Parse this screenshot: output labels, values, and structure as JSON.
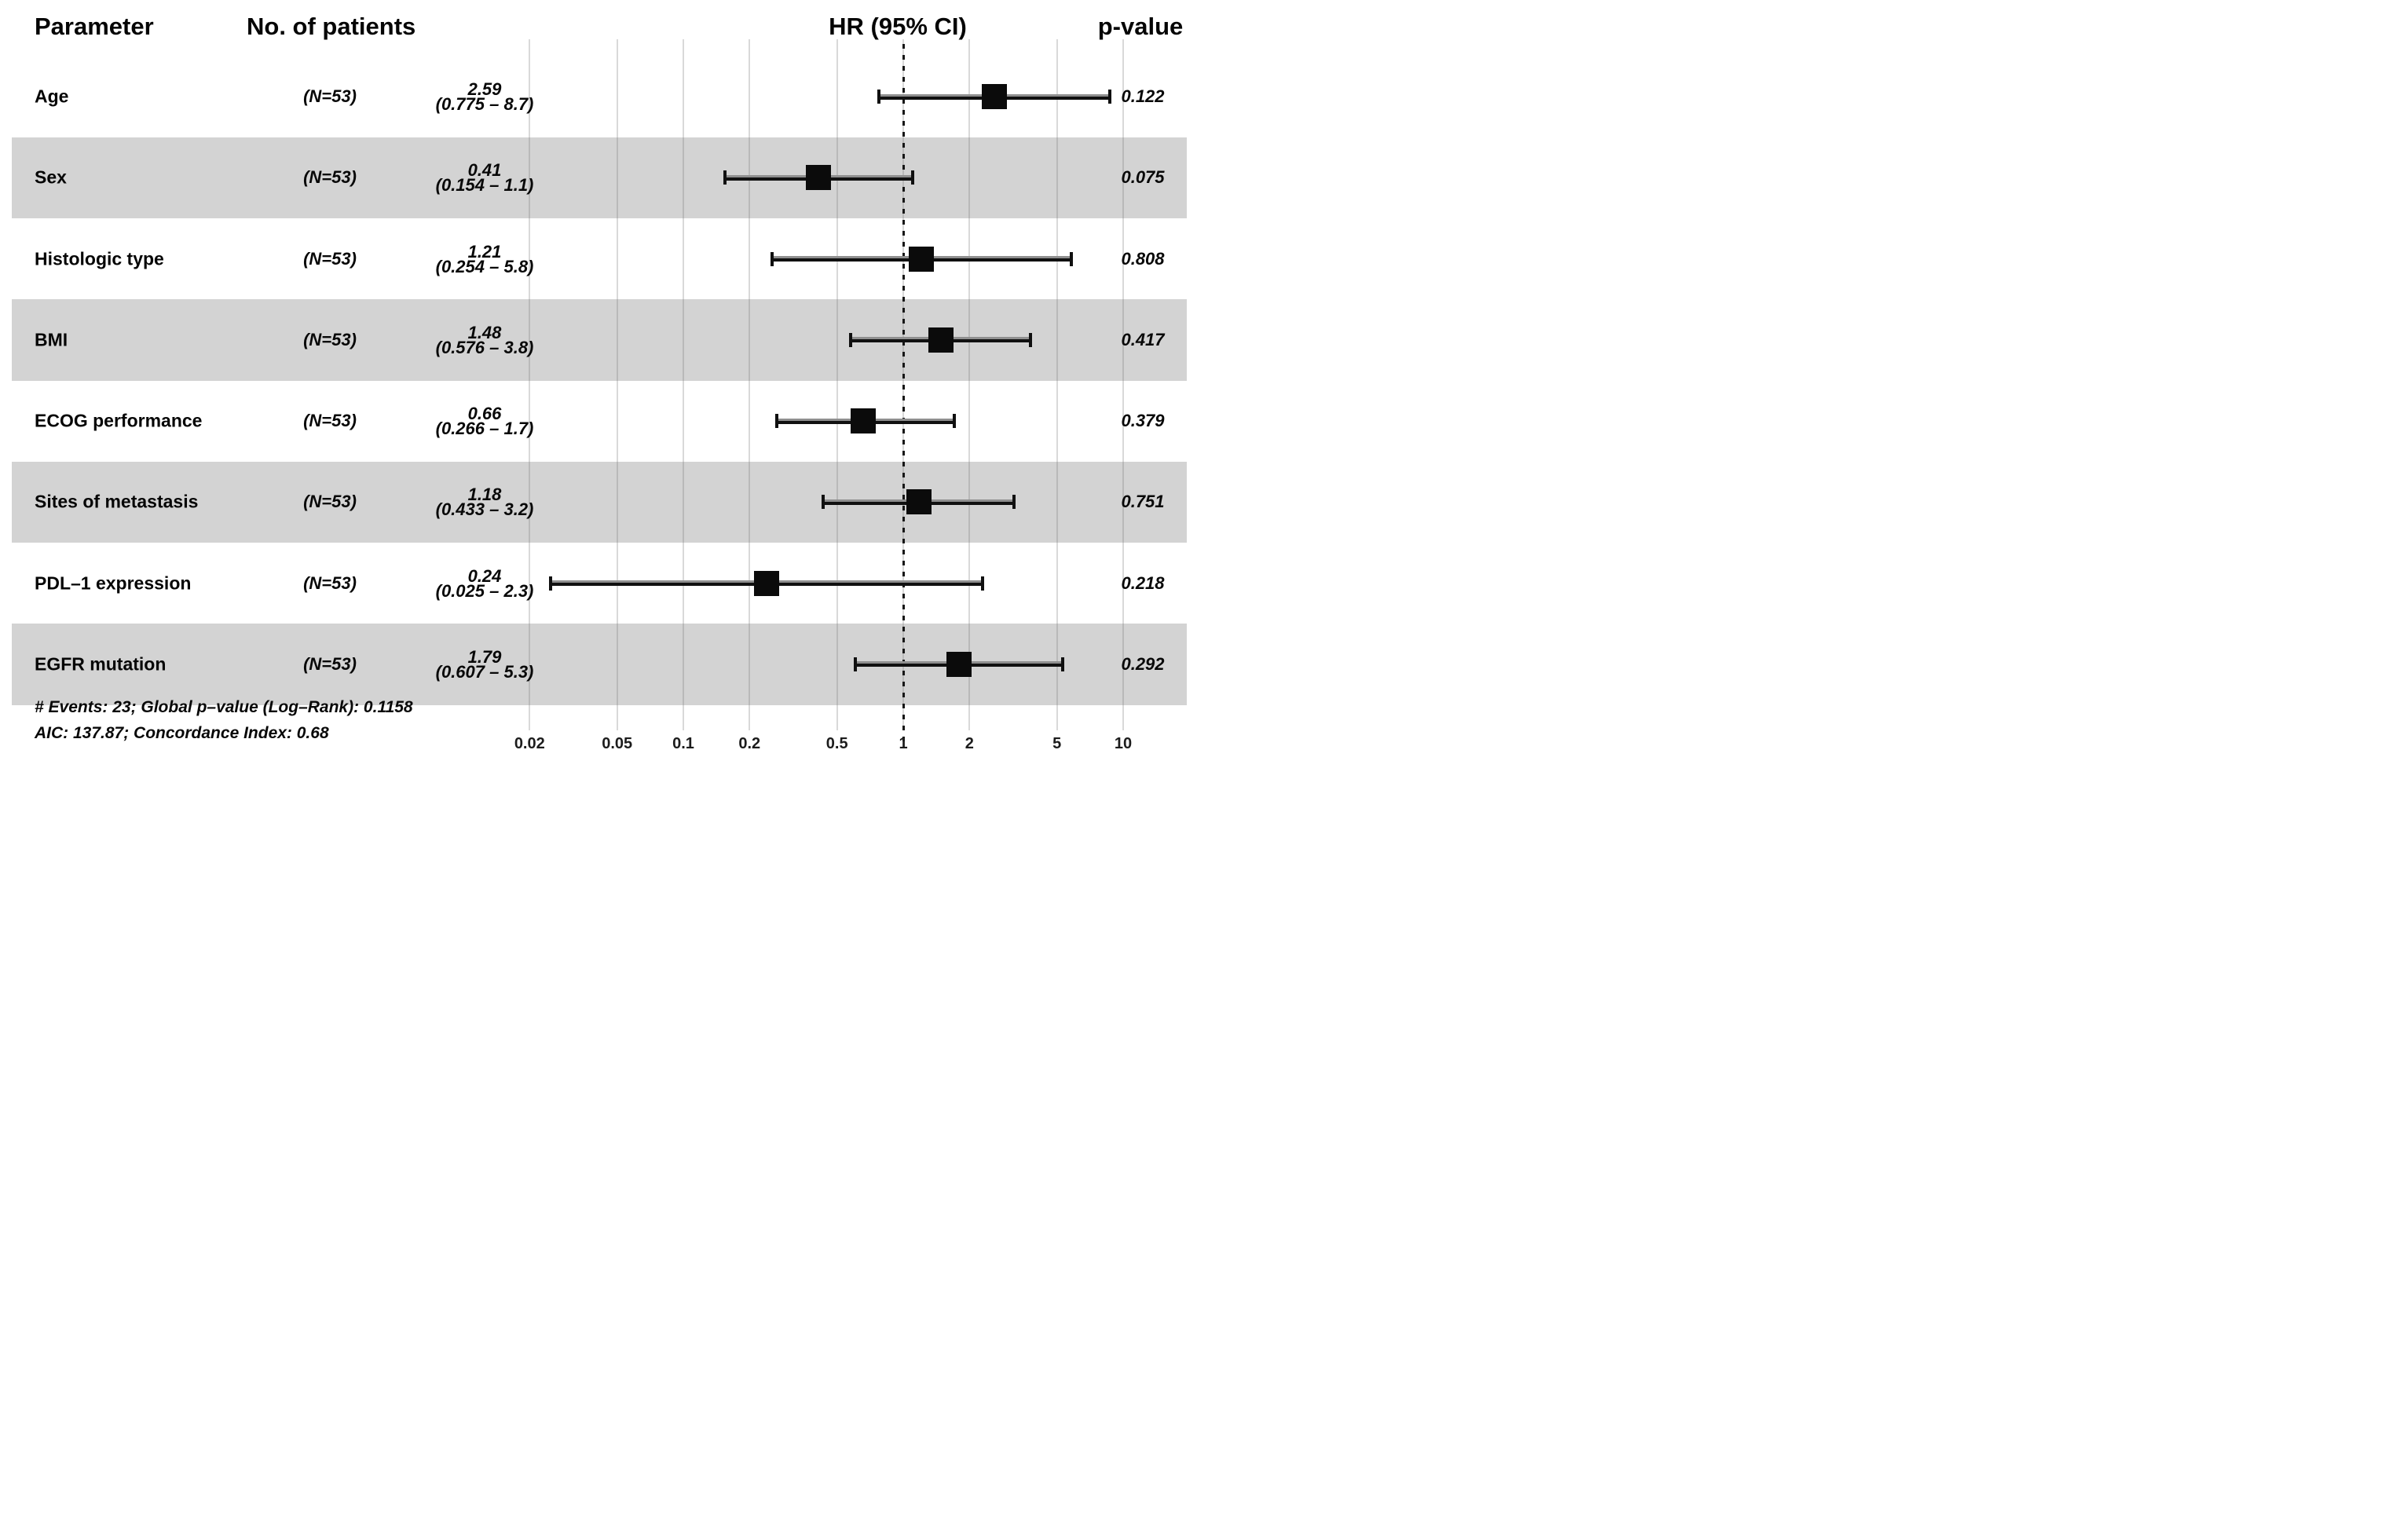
{
  "header": {
    "parameter": "Parameter",
    "patients": "No. of patients",
    "hr_ci": "HR (95% CI)",
    "pvalue": "p-value"
  },
  "chart_data": {
    "type": "forest",
    "x_scale": "log10",
    "x_tick_labels": [
      "0.02",
      "0.05",
      "0.1",
      "0.2",
      "0.5",
      "1",
      "2",
      "5",
      "10"
    ],
    "x_tick_values": [
      0.02,
      0.05,
      0.1,
      0.2,
      0.5,
      1,
      2,
      5,
      10
    ],
    "reference_value": 1,
    "x_domain": [
      0.013,
      20
    ],
    "rows": [
      {
        "parameter": "Age",
        "n": "(N=53)",
        "hr_text": "2.59",
        "ci_text": "(0.775 – 8.7)",
        "hr": 2.59,
        "ci_low": 0.775,
        "ci_high": 8.7,
        "p": "0.122",
        "shaded": false
      },
      {
        "parameter": "Sex",
        "n": "(N=53)",
        "hr_text": "0.41",
        "ci_text": "(0.154 – 1.1)",
        "hr": 0.41,
        "ci_low": 0.154,
        "ci_high": 1.1,
        "p": "0.075",
        "shaded": true
      },
      {
        "parameter": "Histologic type",
        "n": "(N=53)",
        "hr_text": "1.21",
        "ci_text": "(0.254 – 5.8)",
        "hr": 1.21,
        "ci_low": 0.254,
        "ci_high": 5.8,
        "p": "0.808",
        "shaded": false
      },
      {
        "parameter": "BMI",
        "n": "(N=53)",
        "hr_text": "1.48",
        "ci_text": "(0.576 – 3.8)",
        "hr": 1.48,
        "ci_low": 0.576,
        "ci_high": 3.8,
        "p": "0.417",
        "shaded": true
      },
      {
        "parameter": "ECOG performance",
        "n": "(N=53)",
        "hr_text": "0.66",
        "ci_text": "(0.266 – 1.7)",
        "hr": 0.66,
        "ci_low": 0.266,
        "ci_high": 1.7,
        "p": "0.379",
        "shaded": false
      },
      {
        "parameter": "Sites of metastasis",
        "n": "(N=53)",
        "hr_text": "1.18",
        "ci_text": "(0.433 – 3.2)",
        "hr": 1.18,
        "ci_low": 0.433,
        "ci_high": 3.2,
        "p": "0.751",
        "shaded": true
      },
      {
        "parameter": "PDL–1 expression",
        "n": "(N=53)",
        "hr_text": "0.24",
        "ci_text": "(0.025 – 2.3)",
        "hr": 0.24,
        "ci_low": 0.025,
        "ci_high": 2.3,
        "p": "0.218",
        "shaded": false
      },
      {
        "parameter": "EGFR mutation",
        "n": "(N=53)",
        "hr_text": "1.79",
        "ci_text": "(0.607 – 5.3)",
        "hr": 1.79,
        "ci_low": 0.607,
        "ci_high": 5.3,
        "p": "0.292",
        "shaded": true
      }
    ],
    "footnotes": [
      "# Events: 23; Global p–value (Log–Rank): 0.1158",
      "AIC: 137.87; Concordance Index: 0.68"
    ]
  },
  "colors": {
    "band": "#d3d3d3",
    "marker": "#0b0b0b",
    "whisker_gray": "#8f8f8f",
    "whisker_black": "#101010",
    "grid": "#787878",
    "text": "#050505"
  }
}
